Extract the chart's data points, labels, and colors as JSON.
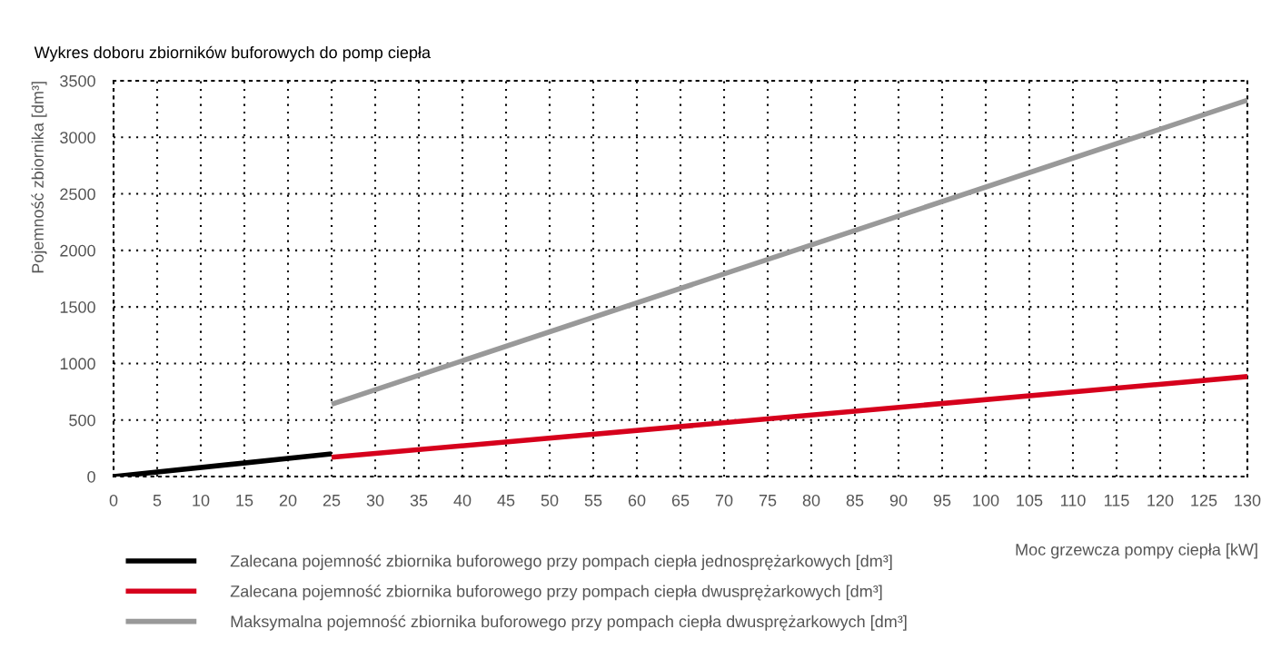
{
  "chart_data": {
    "type": "line",
    "title": "Wykres doboru zbiorników buforowych do pomp ciepła",
    "xlabel": "Moc grzewcza pompy ciepła [kW]",
    "ylabel": "Pojemność zbiornika [dm³]",
    "series": [
      {
        "name": "Zalecana pojemność zbiornika buforowego przy pompach ciepła jednosprężarkowych [dm³]",
        "color": "#000000",
        "x": [
          0,
          25
        ],
        "values": [
          0,
          200
        ]
      },
      {
        "name": "Zalecana pojemność zbiornika buforowego przy pompach ciepła dwusprężarkowych [dm³]",
        "color": "#d6001c",
        "x": [
          25,
          130
        ],
        "values": [
          170,
          884
        ]
      },
      {
        "name": "Maksymalna pojemność zbiornika buforowego przy pompach ciepła dwusprężarkowych [dm³]",
        "color": "#999999",
        "x": [
          25,
          130
        ],
        "values": [
          640,
          3328
        ]
      }
    ],
    "xlim": [
      0,
      130
    ],
    "xticks": [
      0,
      5,
      10,
      15,
      20,
      25,
      30,
      35,
      40,
      45,
      50,
      55,
      60,
      65,
      70,
      75,
      80,
      85,
      90,
      95,
      100,
      105,
      110,
      115,
      120,
      125,
      130
    ],
    "ylim": [
      0,
      3500
    ],
    "yticks": [
      0,
      500,
      1000,
      1500,
      2000,
      2500,
      3000,
      3500
    ],
    "grid": true,
    "legend": "bottom",
    "line_style": "solid",
    "marker": "none"
  }
}
